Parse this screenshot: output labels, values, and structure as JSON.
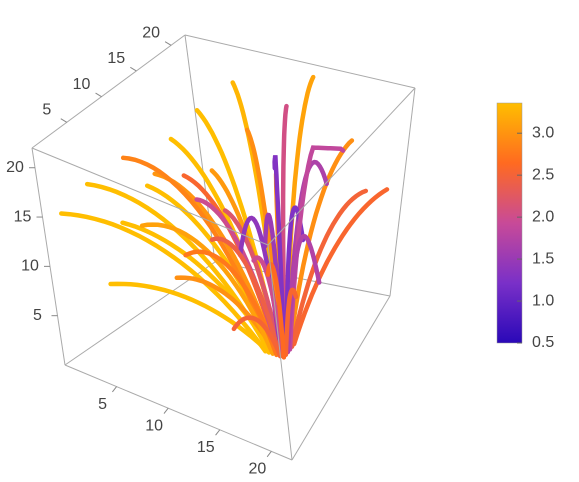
{
  "chart_data": {
    "type": "stream3d",
    "xlim": [
      0,
      22
    ],
    "xticks": [
      5,
      10,
      15,
      20
    ],
    "ylim": [
      0,
      22
    ],
    "yticks": [
      5,
      10,
      15,
      20
    ],
    "zlim": [
      0,
      22
    ],
    "zticks": [
      5,
      10,
      15,
      20
    ],
    "colorbar": {
      "lim": [
        0.5,
        3.36
      ],
      "ticks": [
        0.5,
        {
          "value": 1,
          "label": "1.0"
        },
        1.5,
        {
          "value": 2,
          "label": "2.0"
        },
        2.5,
        {
          "value": 3,
          "label": "3.0"
        }
      ],
      "colors": [
        "#2a08b8",
        "#7a30c8",
        "#c84a98",
        "#ff6a20",
        "#ffbe00"
      ]
    }
  }
}
